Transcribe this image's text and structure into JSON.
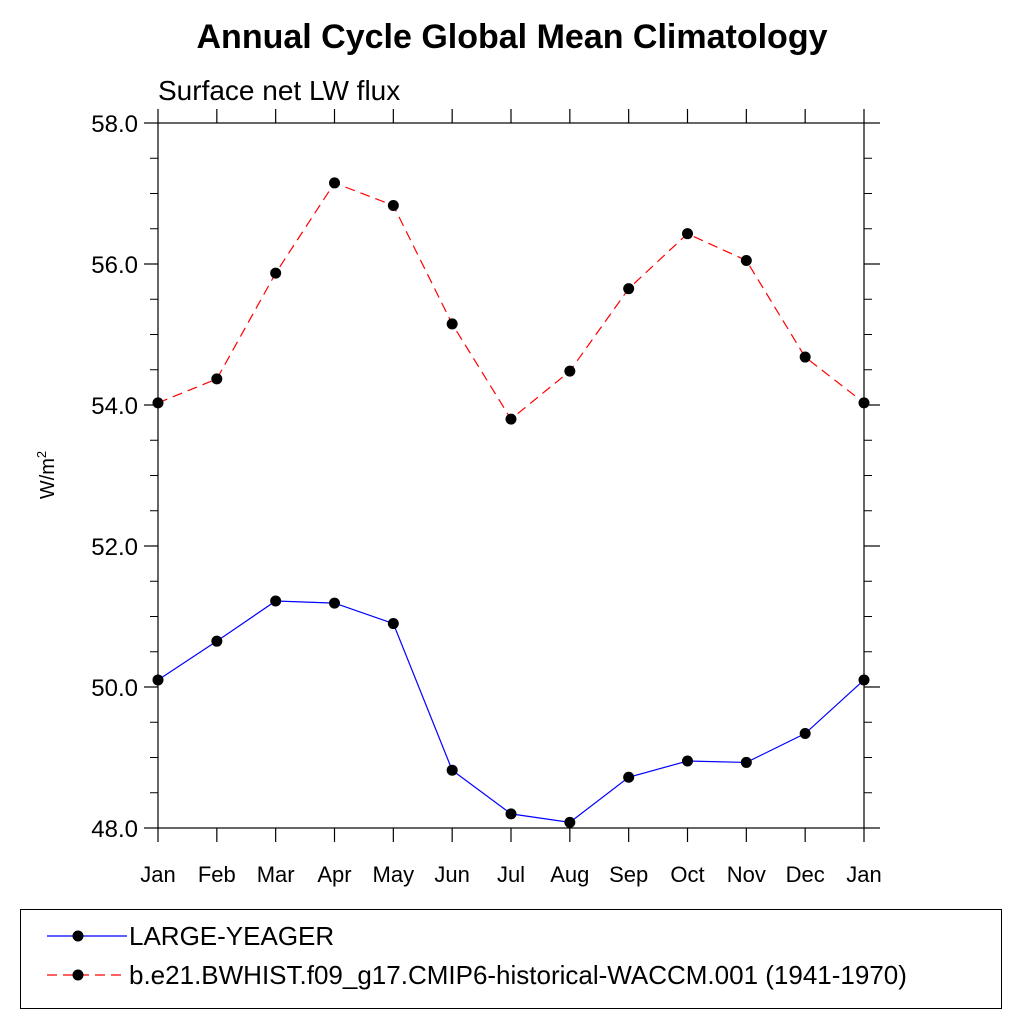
{
  "chart_data": {
    "type": "line",
    "title": "Annual Cycle Global Mean Climatology",
    "subtitle": "Surface net LW flux",
    "ylabel": "W/m",
    "ylabel_superscript": "2",
    "xlabel": "",
    "categories": [
      "Jan",
      "Feb",
      "Mar",
      "Apr",
      "May",
      "Jun",
      "Jul",
      "Aug",
      "Sep",
      "Oct",
      "Nov",
      "Dec",
      "Jan"
    ],
    "ylim": [
      48.0,
      58.0
    ],
    "yticks": [
      "48.0",
      "50.0",
      "52.0",
      "54.0",
      "56.0",
      "58.0"
    ],
    "series": [
      {
        "name": "LARGE-YEAGER",
        "color": "#0000ff",
        "style": "solid",
        "marker": "filled-circle",
        "values": [
          50.1,
          50.65,
          51.22,
          51.19,
          50.9,
          48.82,
          48.2,
          48.08,
          48.72,
          48.95,
          48.93,
          49.34,
          50.1
        ]
      },
      {
        "name": "b.e21.BWHIST.f09_g17.CMIP6-historical-WACCM.001 (1941-1970)",
        "color": "#ff0000",
        "style": "dashed",
        "marker": "filled-circle",
        "values": [
          54.03,
          54.37,
          55.87,
          57.15,
          56.83,
          55.15,
          53.8,
          54.48,
          55.65,
          56.43,
          56.05,
          54.68,
          54.03
        ]
      }
    ],
    "grid": false,
    "legend_position": "bottom"
  }
}
